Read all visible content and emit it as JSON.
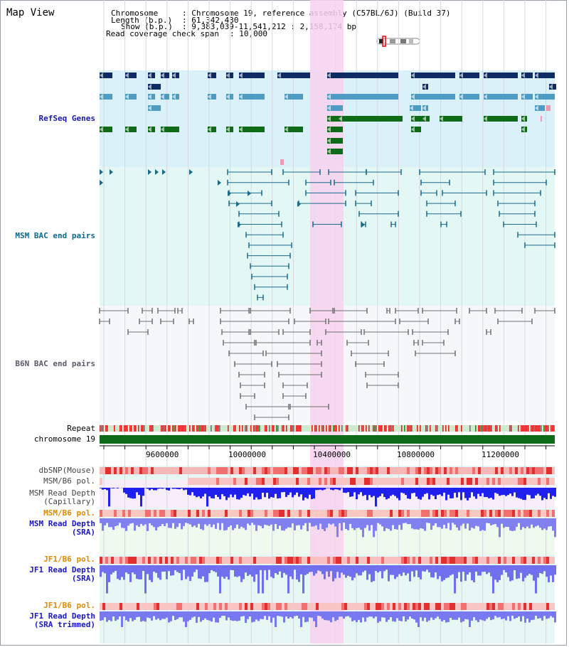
{
  "view": {
    "title": "Map View"
  },
  "header": {
    "chromosome_key": "Chromosome",
    "chromosome_value": ": Chromosome 19, reference assembly (C57BL/6J) (Build 37)",
    "length_key": "Length (b.p.)",
    "length_value": ": 61,342,430",
    "show_key": "Show (b.p.)",
    "show_value": ": 9,383,039-11,541,212 : 2,158,174 bp",
    "coverage_key": "Read coverage check span",
    "coverage_value": ": 10,000"
  },
  "tracks": {
    "refseq": "RefSeq Genes",
    "msm_bac": "MSM BAC end pairs",
    "b6n_bac": "B6N BAC end pairs",
    "repeat": "Repeat",
    "chromosome": "chromosome 19",
    "dbsnp": "dbSNP(Mouse)",
    "msm_b6_pol_1": "MSM/B6 pol.",
    "msm_depth_cap_1": "MSM Read Depth",
    "msm_depth_cap_2": "(Capillary)",
    "msm_b6_pol_2": "MSM/B6 pol.",
    "msm_depth_sra_1": "MSM Read Depth",
    "msm_depth_sra_2": "(SRA)",
    "jf1_pol_1": "JF1/B6 pol.",
    "jf1_depth_sra_1": "JF1 Read Depth",
    "jf1_depth_sra_2": "(SRA)",
    "jf1_pol_2": "JF1/B6 pol.",
    "jf1_trim_1": "JF1 Read Depth",
    "jf1_trim_2": "(SRA trimmed)"
  },
  "axis": {
    "ticks": [
      "9600000",
      "10000000",
      "10400000",
      "10800000",
      "11200000"
    ]
  },
  "colors": {
    "refseq_bg": "#dbf1f9",
    "msm_bg": "#e3f7f5",
    "b6n_bg": "#f5f7fa",
    "highlight": "#f7d2ee",
    "gene_dark": "#0e2b63",
    "gene_mid": "#4c9cc4",
    "gene_green": "#0e6b17",
    "bac_msm": "#1a6a8a",
    "bac_b6n": "#707070",
    "chrom": "#0e6b17",
    "depth_blue": "#2a2ad8",
    "msm_label": "#0066aa",
    "b6n_label": "#555566",
    "pol_label": "#e08a00",
    "depth_label": "#1818c8"
  }
}
